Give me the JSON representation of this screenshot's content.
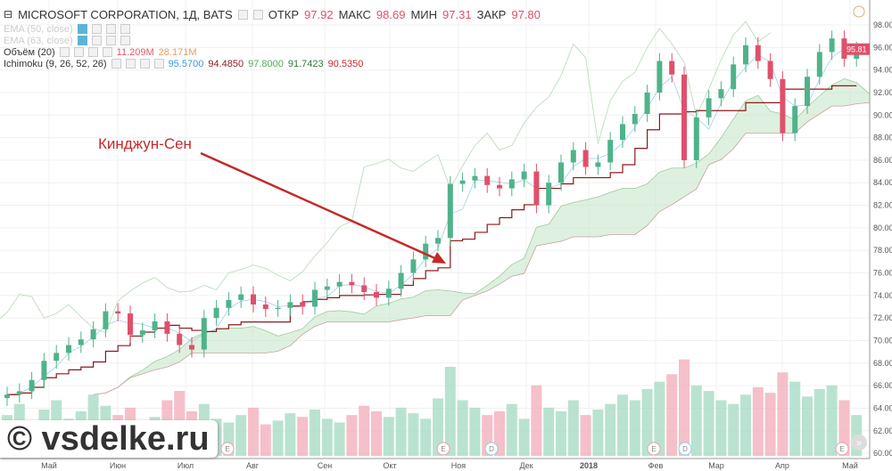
{
  "header": {
    "symbol": "MICROSOFT CORPORATION, 1Д, BATS",
    "open_label": "ОТКР",
    "open": "97.92",
    "high_label": "МАКС",
    "high": "98.69",
    "low_label": "МИН",
    "low": "97.31",
    "close_label": "ЗАКР",
    "close": "97.80"
  },
  "indicators": [
    {
      "name": "EMA (50, close)",
      "values": []
    },
    {
      "name": "EMA (63, close)",
      "values": []
    },
    {
      "name": "Объём (20)",
      "values": [
        {
          "v": "11.209M",
          "color": "#e05a6a"
        },
        {
          "v": "28.171M",
          "color": "#e0a060"
        }
      ]
    },
    {
      "name": "Ichimoku (9, 26, 52, 26)",
      "values": [
        {
          "v": "95.5700",
          "color": "#3a9ad9"
        },
        {
          "v": "94.4850",
          "color": "#8b1a1a"
        },
        {
          "v": "97.8000",
          "color": "#4caf50"
        },
        {
          "v": "91.7423",
          "color": "#2e7d32"
        },
        {
          "v": "90.5350",
          "color": "#c62828"
        }
      ]
    }
  ],
  "annotation": "Кинджун-Сен",
  "watermark": "© vsdelke.ru",
  "colors": {
    "up": "#4fb38a",
    "down": "#e0506a",
    "kijun": "#8b1a1a",
    "cloud": "#c8e6c9"
  },
  "chart_data": {
    "type": "candlestick",
    "y_ticks": [
      "98.00",
      "96.00",
      "94.00",
      "92.00",
      "90.00",
      "88.00",
      "86.00",
      "84.00",
      "82.00",
      "80.00",
      "78.00",
      "76.00",
      "74.00",
      "72.00",
      "70.00",
      "68.00",
      "66.00",
      "64.00",
      "62.00",
      "60.00"
    ],
    "ylim": [
      60,
      98
    ],
    "last_price": "95.81",
    "x_ticks": [
      "Май",
      "Июн",
      "Июл",
      "Авг",
      "Сен",
      "Окт",
      "Ноя",
      "Дек",
      "2018",
      "Фев",
      "Мар",
      "Апр",
      "Май"
    ],
    "events": [
      "E",
      "E",
      "D",
      "E",
      "D",
      "E"
    ],
    "closes": [
      65.2,
      65.5,
      66.5,
      68.2,
      68.9,
      69.6,
      70.1,
      71.0,
      72.6,
      72.4,
      70.5,
      70.9,
      71.7,
      70.6,
      69.6,
      69.2,
      72.0,
      72.9,
      73.6,
      74.1,
      73.2,
      72.8,
      72.9,
      73.4,
      73.0,
      74.5,
      74.8,
      75.2,
      74.9,
      74.3,
      73.8,
      74.6,
      76.0,
      77.2,
      78.6,
      79.1,
      83.9,
      84.2,
      84.6,
      83.8,
      83.5,
      84.3,
      85.0,
      82.0,
      84.0,
      85.8,
      86.9,
      85.4,
      85.8,
      87.8,
      89.2,
      90.1,
      92.0,
      94.8,
      93.6,
      86.0,
      89.8,
      91.5,
      92.3,
      94.5,
      96.2,
      94.8,
      93.2,
      88.4,
      90.8,
      93.4,
      95.6,
      96.8,
      95.0,
      95.8
    ],
    "volumes_m": [
      22,
      28,
      18,
      25,
      30,
      20,
      24,
      33,
      27,
      22,
      26,
      19,
      21,
      30,
      35,
      24,
      28,
      20,
      18,
      22,
      26,
      17,
      19,
      23,
      21,
      25,
      20,
      18,
      22,
      27,
      24,
      21,
      26,
      23,
      20,
      31,
      48,
      30,
      26,
      22,
      24,
      28,
      20,
      38,
      26,
      24,
      30,
      22,
      25,
      28,
      33,
      30,
      36,
      40,
      44,
      52,
      38,
      35,
      30,
      28,
      33,
      37,
      34,
      45,
      40,
      32,
      36,
      38,
      30,
      22
    ]
  }
}
